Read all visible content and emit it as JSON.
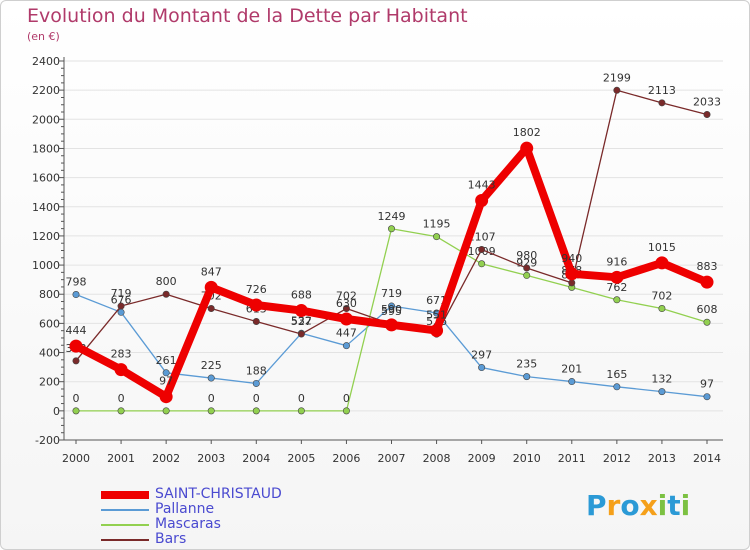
{
  "header": {
    "title": "Evolution du Montant de la Dette par Habitant",
    "unit": "(en €)"
  },
  "brand": {
    "text": "Proxiti",
    "letters": [
      "P",
      "r",
      "o",
      "x",
      "i",
      "t",
      "i"
    ],
    "colors": [
      "#2b9ad6",
      "#f5a01a",
      "#2b9ad6",
      "#f5a01a",
      "#7cc142",
      "#2b9ad6",
      "#7cc142"
    ]
  },
  "chart_data": {
    "type": "line",
    "title": "Evolution du Montant de la Dette par Habitant",
    "ylabel": "(en €)",
    "xlabel": "",
    "ylim": [
      -200,
      2400
    ],
    "yticks": [
      -200,
      0,
      200,
      400,
      600,
      800,
      1000,
      1200,
      1400,
      1600,
      1800,
      2000,
      2200,
      2400
    ],
    "grid": "horizontal",
    "legend_position": "bottom-left",
    "categories": [
      "2000",
      "2001",
      "2002",
      "2003",
      "2004",
      "2005",
      "2006",
      "2007",
      "2008",
      "2009",
      "2010",
      "2011",
      "2012",
      "2013",
      "2014"
    ],
    "series": [
      {
        "name": "SAINT-CHRISTAUD",
        "color": "#ee0000",
        "emphasis": true,
        "values": [
          444,
          283,
          97,
          847,
          726,
          688,
          630,
          590,
          551,
          1443,
          1802,
          940,
          916,
          1015,
          883
        ]
      },
      {
        "name": "Pallanne",
        "color": "#5b9bd5",
        "values": [
          798,
          676,
          261,
          225,
          188,
          532,
          447,
          719,
          671,
          297,
          235,
          201,
          165,
          132,
          97
        ]
      },
      {
        "name": "Mascaras",
        "color": "#92d050",
        "values": [
          0,
          0,
          0,
          0,
          0,
          0,
          0,
          1249,
          1195,
          1009,
          929,
          847,
          762,
          702,
          608
        ]
      },
      {
        "name": "Bars",
        "color": "#7a2a2a",
        "values": [
          343,
          719,
          800,
          702,
          613,
          527,
          702,
          595,
          526,
          1107,
          980,
          878,
          2199,
          2113,
          2033
        ]
      }
    ]
  }
}
